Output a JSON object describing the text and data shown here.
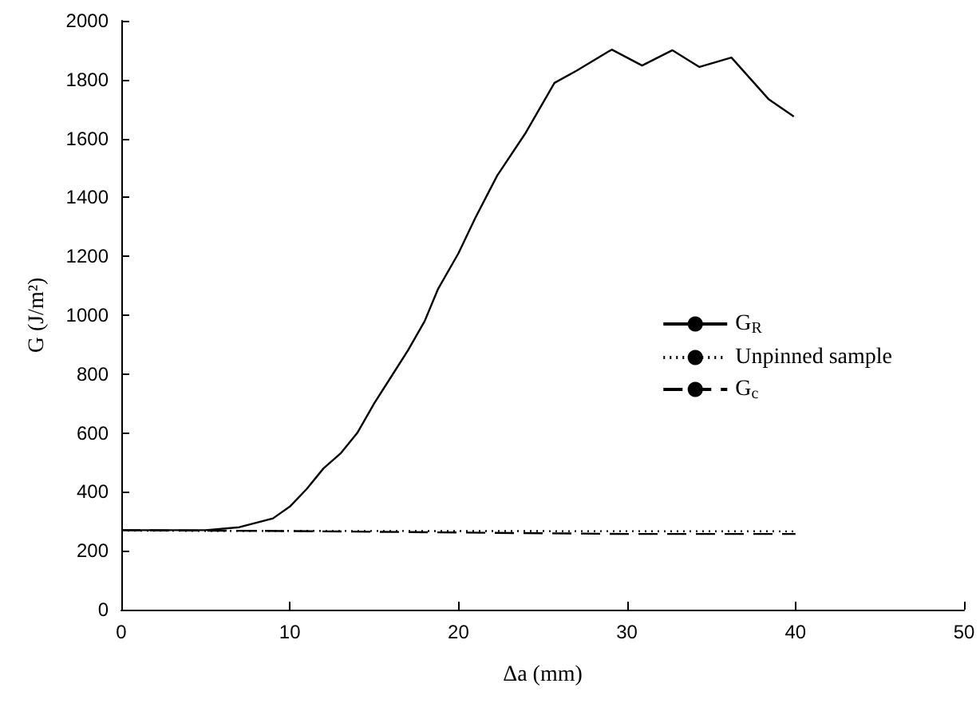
{
  "chart_data": {
    "type": "line",
    "xlabel": "Δa (mm)",
    "ylabel": "G (J/m²)",
    "xlim": [
      0,
      50
    ],
    "xticks": [
      0,
      10,
      20,
      30,
      40,
      50
    ],
    "ylim": [
      0,
      2000
    ],
    "yticks": [
      0,
      200,
      400,
      600,
      800,
      1000,
      1200,
      1400,
      1600,
      1800,
      2000
    ],
    "grid": false,
    "legend": "right",
    "marker": "none",
    "series": [
      {
        "name": "G$_{R}$",
        "color": "#000000",
        "line_style": "solid",
        "x": [
          0,
          5,
          7,
          9,
          10,
          11,
          12,
          13,
          14,
          15,
          16,
          17,
          18,
          18.8,
          20,
          21,
          22.3,
          24,
          25.7,
          27,
          29.1,
          30.9,
          32.7,
          34.3,
          36.2,
          38.4,
          39.9
        ],
        "values": [
          270,
          270,
          280,
          310,
          350,
          410,
          480,
          530,
          600,
          700,
          790,
          880,
          980,
          1090,
          1210,
          1330,
          1474,
          1620,
          1789,
          1830,
          1902,
          1848,
          1900,
          1843,
          1875,
          1734,
          1675
        ]
      },
      {
        "name": "Unpinned sample",
        "color": "#000000",
        "line_style": "dotted",
        "x": [
          0,
          40
        ],
        "values": [
          268,
          266
        ]
      },
      {
        "name": "G$_{c}$",
        "color": "#000000",
        "line_style": "dashed",
        "x": [
          0,
          10,
          20,
          30,
          40
        ],
        "values": [
          270,
          267,
          262,
          257,
          257
        ]
      }
    ]
  }
}
